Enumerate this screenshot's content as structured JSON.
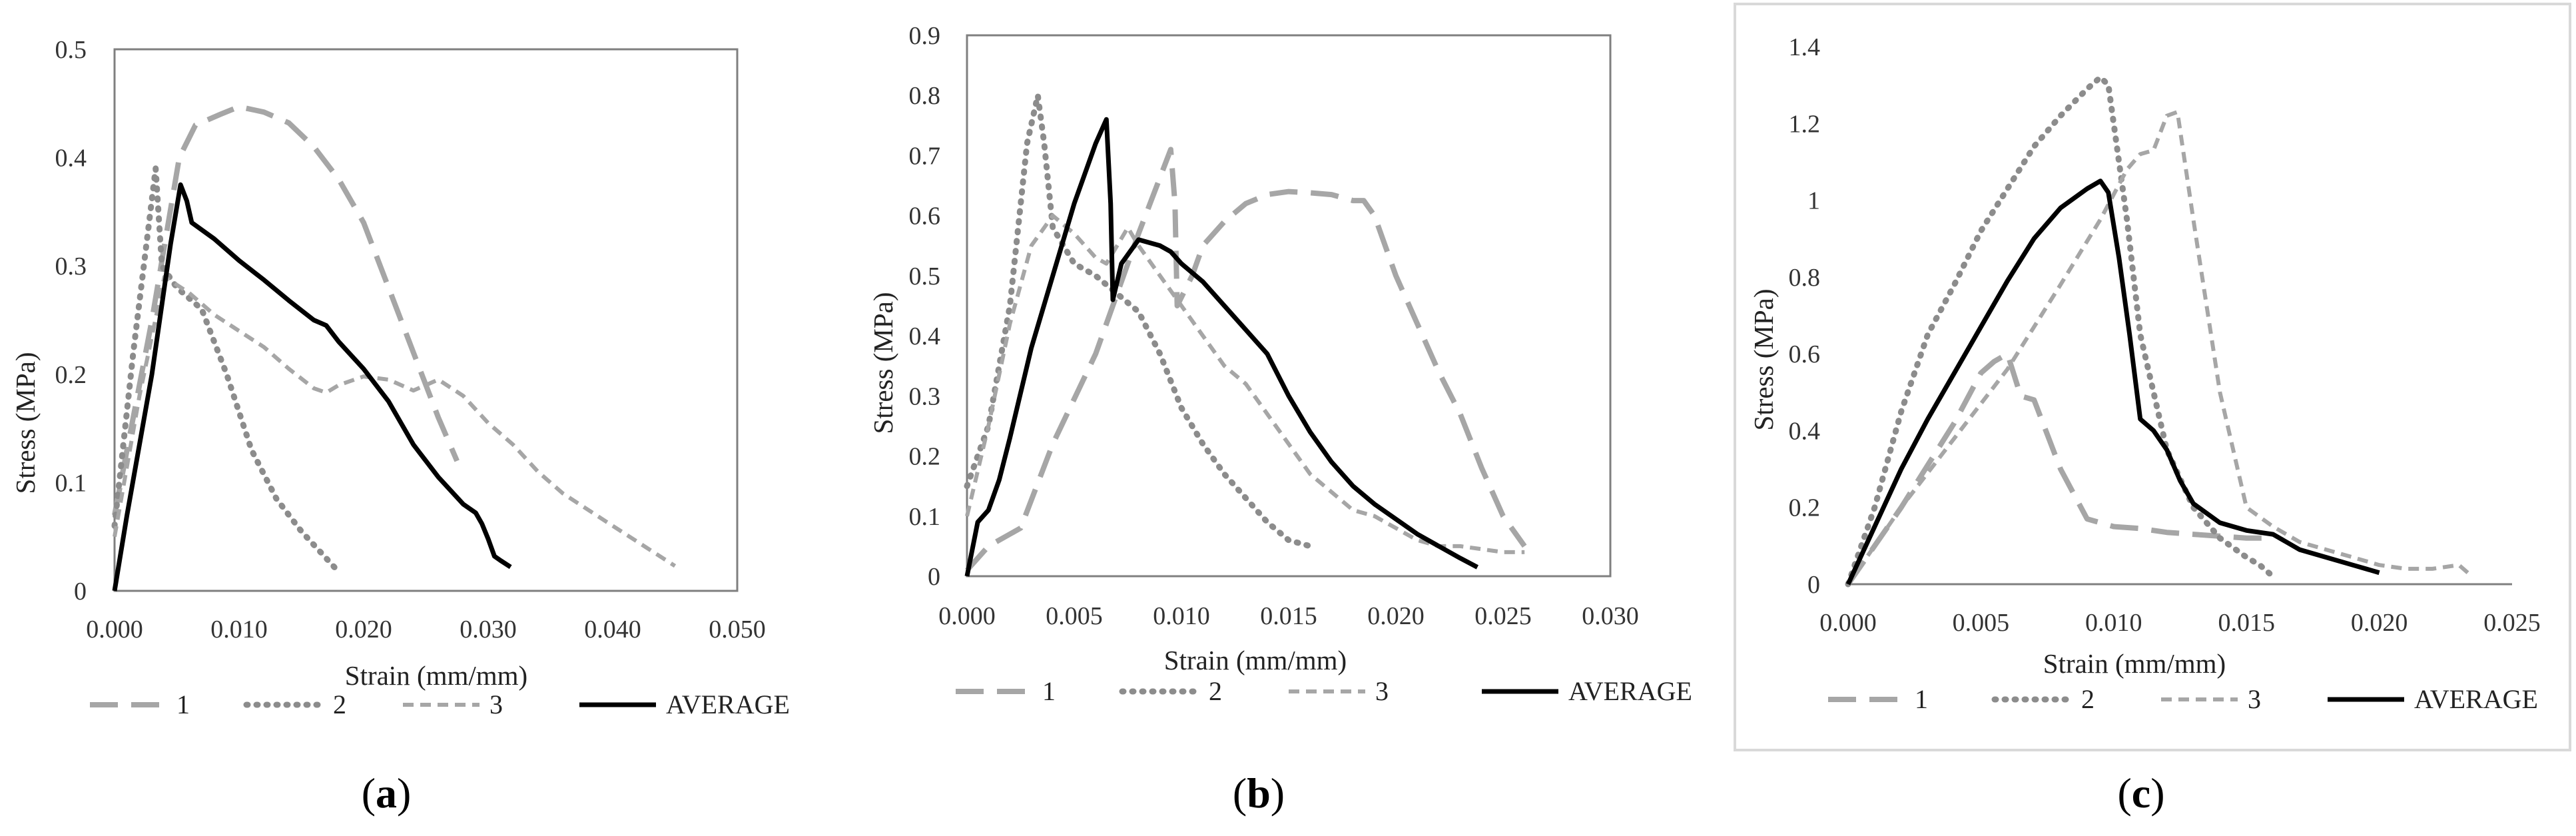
{
  "chart_data": [
    {
      "type": "line",
      "panel": "a",
      "title": "",
      "xlabel": "Strain (mm/mm)",
      "ylabel": "Stress (MPa)",
      "xlim": [
        0,
        0.05
      ],
      "ylim": [
        0,
        0.5
      ],
      "xticks": [
        "0.000",
        "0.010",
        "0.020",
        "0.030",
        "0.040",
        "0.050"
      ],
      "yticks": [
        "0",
        "0.1",
        "0.2",
        "0.3",
        "0.4",
        "0.5"
      ],
      "legend": "bottom",
      "series": [
        {
          "name": "1",
          "style": "long-dash",
          "x": [
            0.0,
            0.003,
            0.0052,
            0.0065,
            0.0085,
            0.01,
            0.012,
            0.014,
            0.016,
            0.018,
            0.02,
            0.022,
            0.024,
            0.026,
            0.0275
          ],
          "y": [
            0.07,
            0.25,
            0.4,
            0.43,
            0.44,
            0.447,
            0.442,
            0.432,
            0.41,
            0.38,
            0.34,
            0.28,
            0.22,
            0.16,
            0.12
          ]
        },
        {
          "name": "2",
          "style": "dotted",
          "x": [
            0.0,
            0.0015,
            0.0033,
            0.0038,
            0.005,
            0.007,
            0.009,
            0.011,
            0.013,
            0.015,
            0.017,
            0.0178
          ],
          "y": [
            0.06,
            0.22,
            0.39,
            0.3,
            0.28,
            0.26,
            0.2,
            0.13,
            0.085,
            0.055,
            0.03,
            0.02
          ]
        },
        {
          "name": "3",
          "style": "short-dash",
          "x": [
            0.0,
            0.002,
            0.004,
            0.006,
            0.008,
            0.01,
            0.012,
            0.014,
            0.016,
            0.017,
            0.018,
            0.02,
            0.022,
            0.024,
            0.026,
            0.028,
            0.03,
            0.032,
            0.034,
            0.036,
            0.04,
            0.045
          ],
          "y": [
            0.05,
            0.18,
            0.29,
            0.275,
            0.255,
            0.24,
            0.225,
            0.205,
            0.187,
            0.183,
            0.19,
            0.198,
            0.195,
            0.185,
            0.195,
            0.18,
            0.155,
            0.135,
            0.11,
            0.09,
            0.06,
            0.023
          ]
        },
        {
          "name": "AVERAGE",
          "style": "solid",
          "x": [
            0.0,
            0.001,
            0.003,
            0.0045,
            0.0053,
            0.0058,
            0.0062,
            0.008,
            0.01,
            0.012,
            0.014,
            0.016,
            0.017,
            0.018,
            0.02,
            0.022,
            0.024,
            0.026,
            0.028,
            0.029,
            0.0295,
            0.03,
            0.0305,
            0.031,
            0.0318
          ],
          "y": [
            0.0,
            0.07,
            0.2,
            0.32,
            0.375,
            0.36,
            0.34,
            0.325,
            0.305,
            0.287,
            0.268,
            0.25,
            0.245,
            0.23,
            0.205,
            0.175,
            0.135,
            0.105,
            0.08,
            0.072,
            0.062,
            0.048,
            0.032,
            0.028,
            0.022
          ]
        }
      ]
    },
    {
      "type": "line",
      "panel": "b",
      "title": "",
      "xlabel": "Strain (mm/mm)",
      "ylabel": "Stress (MPa)",
      "xlim": [
        0,
        0.03
      ],
      "ylim": [
        0,
        0.9
      ],
      "xticks": [
        "0.000",
        "0.005",
        "0.010",
        "0.015",
        "0.020",
        "0.025",
        "0.030"
      ],
      "yticks": [
        "0",
        "0.1",
        "0.2",
        "0.3",
        "0.4",
        "0.5",
        "0.6",
        "0.7",
        "0.8",
        "0.9"
      ],
      "legend": "bottom",
      "series": [
        {
          "name": "1",
          "style": "long-dash",
          "x": [
            0.0,
            0.001,
            0.002,
            0.0025,
            0.004,
            0.006,
            0.008,
            0.0095,
            0.0097,
            0.0098,
            0.0105,
            0.011,
            0.012,
            0.013,
            0.014,
            0.015,
            0.016,
            0.017,
            0.018,
            0.0185,
            0.019,
            0.02,
            0.021,
            0.022,
            0.023,
            0.024,
            0.025,
            0.026
          ],
          "y": [
            0.01,
            0.05,
            0.07,
            0.08,
            0.22,
            0.37,
            0.57,
            0.71,
            0.62,
            0.45,
            0.5,
            0.55,
            0.59,
            0.62,
            0.635,
            0.64,
            0.638,
            0.635,
            0.625,
            0.625,
            0.6,
            0.5,
            0.42,
            0.34,
            0.27,
            0.18,
            0.1,
            0.05
          ]
        },
        {
          "name": "2",
          "style": "dotted",
          "x": [
            0.0,
            0.001,
            0.002,
            0.0028,
            0.0033,
            0.0036,
            0.004,
            0.005,
            0.006,
            0.007,
            0.008,
            0.009,
            0.01,
            0.011,
            0.012,
            0.013,
            0.014,
            0.015,
            0.016
          ],
          "y": [
            0.15,
            0.25,
            0.45,
            0.72,
            0.8,
            0.72,
            0.58,
            0.52,
            0.5,
            0.47,
            0.44,
            0.37,
            0.28,
            0.22,
            0.17,
            0.13,
            0.09,
            0.06,
            0.05
          ]
        },
        {
          "name": "3",
          "style": "short-dash",
          "x": [
            0.0,
            0.001,
            0.002,
            0.003,
            0.004,
            0.005,
            0.0055,
            0.006,
            0.0065,
            0.007,
            0.0075,
            0.008,
            0.009,
            0.01,
            0.011,
            0.012,
            0.013,
            0.014,
            0.015,
            0.016,
            0.017,
            0.018,
            0.019,
            0.02,
            0.021,
            0.022,
            0.023,
            0.024,
            0.025,
            0.026
          ],
          "y": [
            0.1,
            0.25,
            0.42,
            0.55,
            0.6,
            0.57,
            0.55,
            0.53,
            0.52,
            0.55,
            0.58,
            0.55,
            0.5,
            0.45,
            0.4,
            0.35,
            0.32,
            0.27,
            0.22,
            0.17,
            0.14,
            0.11,
            0.1,
            0.08,
            0.06,
            0.05,
            0.05,
            0.045,
            0.04,
            0.04
          ]
        },
        {
          "name": "AVERAGE",
          "style": "solid",
          "x": [
            0.0,
            0.0005,
            0.001,
            0.0015,
            0.002,
            0.003,
            0.004,
            0.005,
            0.006,
            0.0065,
            0.0067,
            0.0068,
            0.0072,
            0.0078,
            0.008,
            0.0085,
            0.009,
            0.0095,
            0.01,
            0.011,
            0.012,
            0.013,
            0.014,
            0.015,
            0.016,
            0.017,
            0.018,
            0.019,
            0.02,
            0.021,
            0.022,
            0.023,
            0.0238
          ],
          "y": [
            0.0,
            0.09,
            0.11,
            0.16,
            0.23,
            0.38,
            0.5,
            0.62,
            0.72,
            0.76,
            0.62,
            0.46,
            0.52,
            0.55,
            0.56,
            0.555,
            0.55,
            0.54,
            0.52,
            0.49,
            0.45,
            0.41,
            0.37,
            0.3,
            0.24,
            0.19,
            0.15,
            0.12,
            0.095,
            0.07,
            0.05,
            0.03,
            0.015
          ]
        }
      ]
    },
    {
      "type": "line",
      "panel": "c",
      "title": "",
      "xlabel": "Strain (mm/mm)",
      "ylabel": "Stress (MPa)",
      "xlim": [
        0,
        0.025
      ],
      "ylim": [
        0,
        1.4
      ],
      "xticks": [
        "0.000",
        "0.005",
        "0.010",
        "0.015",
        "0.020",
        "0.025"
      ],
      "yticks": [
        "0",
        "0.2",
        "0.4",
        "0.6",
        "0.8",
        "1",
        "1.2",
        "1.4"
      ],
      "legend": "bottom",
      "series": [
        {
          "name": "1",
          "style": "long-dash",
          "x": [
            0.0,
            0.001,
            0.002,
            0.003,
            0.004,
            0.005,
            0.0055,
            0.006,
            0.0065,
            0.007,
            0.008,
            0.009,
            0.01,
            0.011,
            0.012,
            0.013,
            0.014,
            0.015,
            0.016
          ],
          "y": [
            0.0,
            0.1,
            0.2,
            0.31,
            0.42,
            0.55,
            0.58,
            0.6,
            0.49,
            0.48,
            0.3,
            0.17,
            0.15,
            0.145,
            0.135,
            0.13,
            0.125,
            0.12,
            0.12
          ]
        },
        {
          "name": "2",
          "style": "dotted",
          "x": [
            0.0,
            0.001,
            0.002,
            0.003,
            0.004,
            0.005,
            0.006,
            0.007,
            0.008,
            0.009,
            0.0095,
            0.0098,
            0.01,
            0.0105,
            0.011,
            0.012,
            0.013,
            0.014,
            0.015,
            0.0155,
            0.016
          ],
          "y": [
            0.0,
            0.2,
            0.45,
            0.65,
            0.78,
            0.92,
            1.03,
            1.14,
            1.22,
            1.29,
            1.32,
            1.3,
            1.2,
            0.95,
            0.65,
            0.35,
            0.2,
            0.12,
            0.07,
            0.05,
            0.02
          ]
        },
        {
          "name": "3",
          "style": "short-dash",
          "x": [
            0.0,
            0.001,
            0.002,
            0.004,
            0.006,
            0.008,
            0.0095,
            0.0105,
            0.011,
            0.0115,
            0.012,
            0.0124,
            0.013,
            0.014,
            0.015,
            0.016,
            0.017,
            0.018,
            0.019,
            0.02,
            0.021,
            0.022,
            0.023,
            0.0235
          ],
          "y": [
            0.0,
            0.1,
            0.2,
            0.38,
            0.56,
            0.78,
            0.95,
            1.08,
            1.12,
            1.13,
            1.22,
            1.23,
            0.95,
            0.5,
            0.2,
            0.15,
            0.11,
            0.09,
            0.07,
            0.05,
            0.04,
            0.04,
            0.05,
            0.02
          ]
        },
        {
          "name": "AVERAGE",
          "style": "solid",
          "x": [
            0.0,
            0.001,
            0.002,
            0.003,
            0.004,
            0.005,
            0.006,
            0.007,
            0.008,
            0.009,
            0.0095,
            0.0098,
            0.0102,
            0.0106,
            0.011,
            0.0115,
            0.012,
            0.0125,
            0.013,
            0.014,
            0.015,
            0.016,
            0.017,
            0.018,
            0.019,
            0.02
          ],
          "y": [
            0.0,
            0.15,
            0.3,
            0.43,
            0.55,
            0.67,
            0.79,
            0.9,
            0.98,
            1.03,
            1.05,
            1.02,
            0.85,
            0.65,
            0.43,
            0.4,
            0.35,
            0.27,
            0.21,
            0.16,
            0.14,
            0.13,
            0.09,
            0.07,
            0.05,
            0.03
          ]
        }
      ]
    }
  ],
  "panel_labels": {
    "a": "a",
    "b": "b",
    "c": "c"
  },
  "colors": {
    "series1": "#a6a6a6",
    "series2": "#8c8c8c",
    "series3": "#a6a6a6",
    "average": "#000000",
    "axis": "#7f7f7f",
    "frame": "#7f7f7f",
    "panel_c_border": "#d9d9d9"
  }
}
